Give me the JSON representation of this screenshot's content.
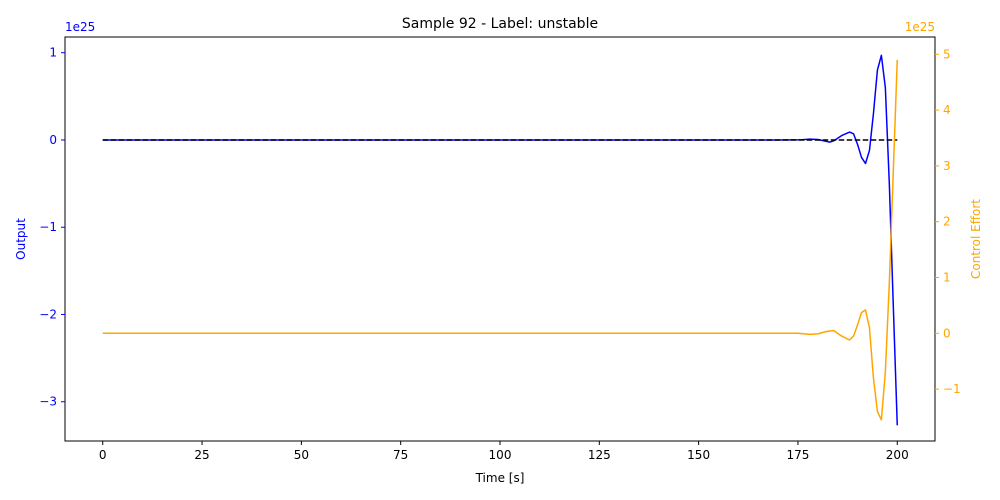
{
  "chart_data": {
    "type": "line",
    "title": "Sample 92 - Label: unstable",
    "xlabel": "Time [s]",
    "xlim": [
      -9.5,
      209.5
    ],
    "x_ticks": [
      0,
      25,
      50,
      75,
      100,
      125,
      150,
      175,
      200
    ],
    "left_axis": {
      "label": "Output",
      "color": "#0000ff",
      "offset_text": "1e25",
      "ylim": [
        -3.45,
        1.18
      ],
      "ticks": [
        1,
        0,
        -1,
        -2,
        -3
      ],
      "tick_labels": [
        "1",
        "0",
        "−1",
        "−2",
        "−3"
      ]
    },
    "right_axis": {
      "label": "Control Effort",
      "color": "#ffa500",
      "offset_text": "1e25",
      "ylim": [
        -1.93,
        5.31
      ],
      "ticks": [
        -1,
        0,
        1,
        2,
        3,
        4,
        5
      ],
      "tick_labels": [
        "−1",
        "0",
        "1",
        "2",
        "3",
        "4",
        "5"
      ]
    },
    "series": [
      {
        "axis": "left",
        "color": "#0000ff",
        "style": "solid",
        "x": [
          0,
          50,
          100,
          150,
          170,
          176,
          178,
          180,
          182,
          183,
          184,
          186,
          188,
          189,
          190,
          191,
          192,
          193,
          194,
          195,
          196,
          197,
          198,
          199,
          200
        ],
        "y": [
          0,
          0,
          0,
          0,
          0,
          0.003,
          0.01,
          0.005,
          -0.015,
          -0.025,
          -0.01,
          0.05,
          0.09,
          0.07,
          -0.05,
          -0.2,
          -0.27,
          -0.12,
          0.3,
          0.8,
          0.97,
          0.6,
          -0.5,
          -1.9,
          -3.27
        ]
      },
      {
        "axis": "left",
        "color": "#000000",
        "style": "dashed",
        "x": [
          0,
          200
        ],
        "y": [
          0,
          0
        ]
      },
      {
        "axis": "right",
        "color": "#ffa500",
        "style": "solid",
        "x": [
          0,
          50,
          100,
          150,
          175,
          178,
          180,
          182,
          184,
          186,
          188,
          189,
          190,
          191,
          192,
          193,
          194,
          195,
          196,
          197,
          198,
          199,
          200
        ],
        "y": [
          0,
          0,
          0,
          0,
          0,
          -0.02,
          -0.01,
          0.03,
          0.05,
          -0.05,
          -0.12,
          -0.05,
          0.15,
          0.37,
          0.42,
          0.1,
          -0.8,
          -1.4,
          -1.55,
          -0.7,
          0.9,
          2.9,
          4.9
        ]
      }
    ]
  }
}
